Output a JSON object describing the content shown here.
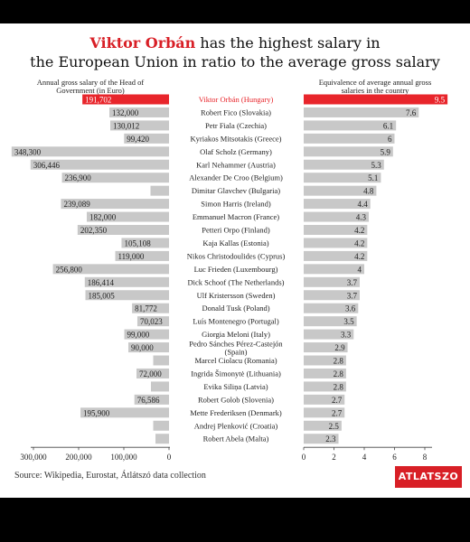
{
  "header": {
    "title_highlight": "Viktor Orbán",
    "title_rest": " has the highest salary in",
    "title_line2": "the European Union in ratio to the average gross salary"
  },
  "colors": {
    "accent": "#e8252b",
    "bar": "#c8c8c8",
    "text": "#222222"
  },
  "footer": {
    "source": "Source: Wikipedia, Eurostat, Átlátszó data collection",
    "logo": "ATLATSZO"
  },
  "chart_data": [
    {
      "type": "bar",
      "title": "Annual gross salary of the Head of Government (in Euro)",
      "orientation": "horizontal-reversed",
      "xlim": [
        0,
        350000
      ],
      "xticks": [
        "300,000",
        "200,000",
        "100,000",
        "0"
      ],
      "xtick_values": [
        300000,
        200000,
        100000,
        0
      ],
      "highlight_index": 0,
      "categories": [
        "Viktor Orbán (Hungary)",
        "Robert Fico (Slovakia)",
        "Petr Fiala (Czechia)",
        "Kyriakos Mitsotakis (Greece)",
        "Olaf Scholz (Germany)",
        "Karl Nehammer (Austria)",
        "Alexander De Croo (Belgium)",
        "Dimitar Glavchev (Bulgaria)",
        "Simon Harris (Ireland)",
        "Emmanuel Macron (France)",
        "Petteri Orpo (Finland)",
        "Kaja Kallas (Estonia)",
        "Nikos Christodoulides (Cyprus)",
        "Luc Frieden (Luxembourg)",
        "Dick Schoof (The Netherlands)",
        "Ulf Kristersson (Sweden)",
        "Donald Tusk (Poland)",
        "Luís Montenegro (Portugal)",
        "Giorgia Meloni (Italy)",
        "Pedro Sánches Pérez-Castejón (Spain)",
        "Marcel Ciolacu (Romania)",
        "Ingrida Šimonytė (Lithuania)",
        "Evika Siliņa (Latvia)",
        "Robert Golob (Slovenia)",
        "Mette Frederiksen (Denmark)",
        "Andrej Plenković (Croatia)",
        "Robert Abela (Malta)"
      ],
      "values": [
        191702,
        132000,
        130012,
        99420,
        348300,
        306446,
        236900,
        41000,
        239089,
        182000,
        202350,
        105108,
        119000,
        256800,
        186414,
        185005,
        81772,
        70023,
        99000,
        90000,
        35000,
        72000,
        40000,
        76586,
        195900,
        35000,
        30000
      ],
      "labels": [
        "191,702",
        "132,000",
        "130,012",
        "99,420",
        "348,300",
        "306,446",
        "236,900",
        "",
        "239,089",
        "182,000",
        "202,350",
        "105,108",
        "119,000",
        "256,800",
        "186,414",
        "185,005",
        "81,772",
        "70,023",
        "99,000",
        "90,000",
        "",
        "72,000",
        "",
        "76,586",
        "195,900",
        "",
        ""
      ]
    },
    {
      "type": "bar",
      "title": "Equivalence of average annual gross salaries in the country",
      "orientation": "horizontal",
      "xlim": [
        0,
        9.7
      ],
      "xticks": [
        "0",
        "2",
        "4",
        "6",
        "8"
      ],
      "xtick_values": [
        0,
        2,
        4,
        6,
        8
      ],
      "highlight_index": 0,
      "values": [
        9.5,
        7.6,
        6.1,
        6,
        5.9,
        5.3,
        5.1,
        4.8,
        4.4,
        4.3,
        4.2,
        4.2,
        4.2,
        4,
        3.7,
        3.7,
        3.6,
        3.5,
        3.3,
        2.9,
        2.8,
        2.8,
        2.8,
        2.7,
        2.7,
        2.5,
        2.3
      ],
      "labels": [
        "9.5",
        "7.6",
        "6.1",
        "6",
        "5.9",
        "5.3",
        "5.1",
        "4.8",
        "4.4",
        "4.3",
        "4.2",
        "4.2",
        "4.2",
        "4",
        "3.7",
        "3.7",
        "3.6",
        "3.5",
        "3.3",
        "2.9",
        "2.8",
        "2.8",
        "2.8",
        "2.7",
        "2.7",
        "2.5",
        "2.3"
      ]
    }
  ]
}
